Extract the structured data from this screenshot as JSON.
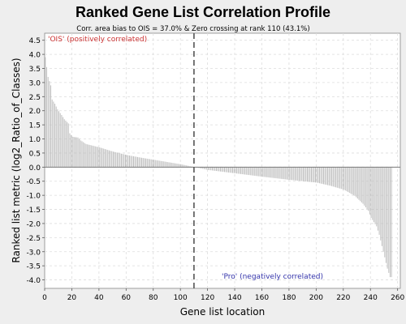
{
  "chart_data": {
    "type": "bar",
    "title": "Ranked Gene List Correlation Profile",
    "subtitle": "Corr. area bias to OIS = 37.0% & Zero crossing at rank 110 (43.1%)",
    "xlabel": "Gene list location",
    "ylabel": "Ranked list metric (log2_Ratio_of_Classes)",
    "xlim": [
      0,
      262
    ],
    "ylim": [
      -4.3,
      4.75
    ],
    "x_ticks": [
      0,
      20,
      40,
      60,
      80,
      100,
      120,
      140,
      160,
      180,
      200,
      220,
      240,
      260
    ],
    "y_ticks": [
      -4.0,
      -3.5,
      -3.0,
      -2.5,
      -2.0,
      -1.5,
      -1.0,
      -0.5,
      0.0,
      0.5,
      1.0,
      1.5,
      2.0,
      2.5,
      3.0,
      3.5,
      4.0,
      4.5
    ],
    "grid": true,
    "zero_crossing_rank": 110,
    "n_genes": 256,
    "annotations": {
      "positive_label": "'OIS' (positively correlated)",
      "negative_label": "'Pro' (negatively correlated)"
    },
    "series": [
      {
        "profile_points": [
          [
            0,
            3.9
          ],
          [
            2,
            3.2
          ],
          [
            4,
            2.9
          ],
          [
            5,
            2.4
          ],
          [
            7,
            2.25
          ],
          [
            9,
            2.05
          ],
          [
            12,
            1.85
          ],
          [
            14,
            1.7
          ],
          [
            17,
            1.55
          ],
          [
            18,
            1.2
          ],
          [
            20,
            1.08
          ],
          [
            24,
            1.05
          ],
          [
            26,
            0.95
          ],
          [
            30,
            0.82
          ],
          [
            40,
            0.7
          ],
          [
            50,
            0.55
          ],
          [
            60,
            0.43
          ],
          [
            70,
            0.34
          ],
          [
            80,
            0.26
          ],
          [
            90,
            0.18
          ],
          [
            100,
            0.1
          ],
          [
            110,
            0.0
          ],
          [
            120,
            -0.1
          ],
          [
            140,
            -0.22
          ],
          [
            160,
            -0.34
          ],
          [
            180,
            -0.45
          ],
          [
            200,
            -0.55
          ],
          [
            210,
            -0.66
          ],
          [
            220,
            -0.8
          ],
          [
            228,
            -1.02
          ],
          [
            234,
            -1.3
          ],
          [
            238,
            -1.55
          ],
          [
            240,
            -1.8
          ],
          [
            244,
            -2.1
          ],
          [
            246,
            -2.4
          ],
          [
            248,
            -2.8
          ],
          [
            250,
            -3.2
          ],
          [
            252,
            -3.6
          ],
          [
            254,
            -3.9
          ]
        ]
      }
    ],
    "colors": {
      "bars": "#bebebe",
      "zero_line": "#7a7a7a",
      "zero_crossing": "#555555",
      "positive_label": "#cc3333",
      "negative_label": "#3333aa",
      "grid": "#dddddd",
      "plot_bg": "#ffffff",
      "page_bg": "#eeeeee"
    }
  }
}
